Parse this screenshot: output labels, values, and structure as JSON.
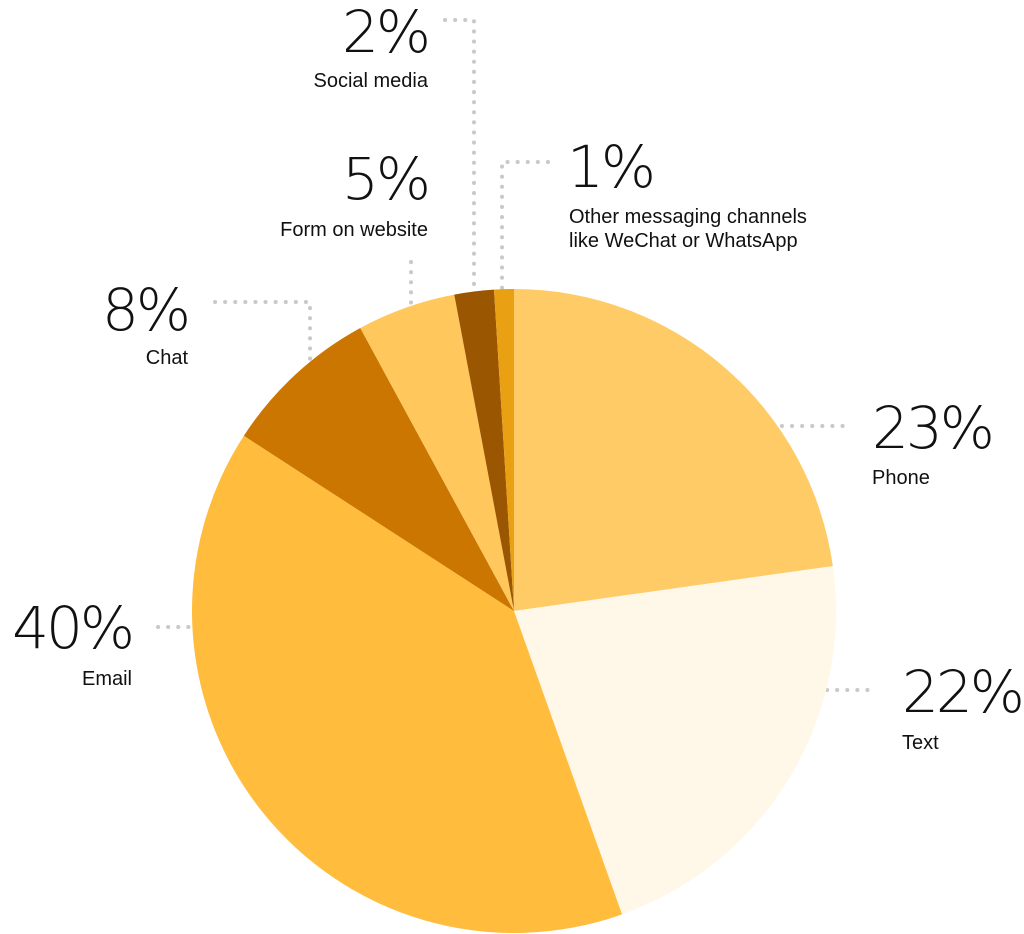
{
  "chart_data": {
    "type": "pie",
    "title": "",
    "start_angle_deg": 0,
    "direction": "clockwise",
    "slices": [
      {
        "label": "Phone",
        "value": 23,
        "value_label": "23%",
        "color": "#FFCB66"
      },
      {
        "label": "Text",
        "value": 22,
        "value_label": "22%",
        "color": "#FFF8E9"
      },
      {
        "label": "Email",
        "value": 40,
        "value_label": "40%",
        "color": "#FFBC3D"
      },
      {
        "label": "Chat",
        "value": 8,
        "value_label": "8%",
        "color": "#CA7600"
      },
      {
        "label": "Form on website",
        "value": 5,
        "value_label": "5%",
        "color": "#FFC75C"
      },
      {
        "label": "Social media",
        "value": 2,
        "value_label": "2%",
        "color": "#9A5600"
      },
      {
        "label": "Other messaging channels like WeChat or WhatsApp",
        "label_lines": [
          "Other messaging channels",
          "like WeChat or WhatsApp"
        ],
        "value": 1,
        "value_label": "1%",
        "color": "#E9A013"
      }
    ],
    "legend": "none",
    "leader_color": "#C9C9C9"
  }
}
